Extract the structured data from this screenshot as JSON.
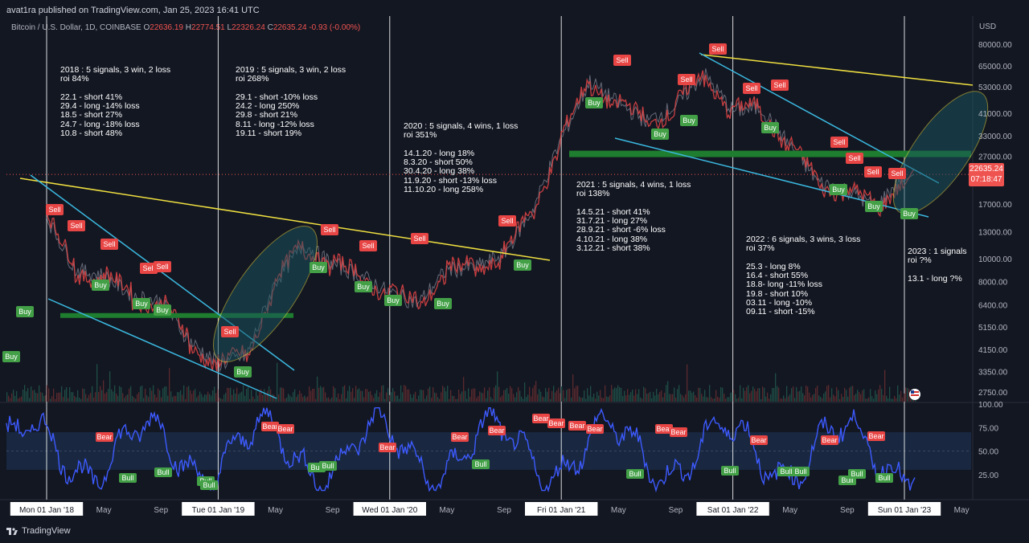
{
  "header": {
    "published": "avat1ra published on TradingView.com, Jan 25, 2023 16:41 UTC",
    "symbol": "Bitcoin / U.S. Dollar, 1D, COINBASE",
    "o_label": "O",
    "o": "22636.19",
    "h_label": "H",
    "h": "22774.51",
    "l_label": "L",
    "l": "22326.24",
    "c_label": "C",
    "c": "22635.24",
    "change": "-0.93 (-0.00%)"
  },
  "price_axis": {
    "currency": "USD",
    "ticks": [
      "80000.00",
      "65000.00",
      "53000.00",
      "41000.00",
      "33000.00",
      "27000.00",
      "17000.00",
      "13000.00",
      "10000.00",
      "8000.00",
      "6400.00",
      "5150.00",
      "4150.00",
      "3350.00",
      "2750.00"
    ],
    "current_price": "22635.24",
    "countdown": "07:18:47"
  },
  "osc_axis": {
    "ticks": [
      "100.00",
      "75.00",
      "50.00",
      "25.00"
    ]
  },
  "time_axis": [
    {
      "label": "Mon 01 Jan '18",
      "boxed": true
    },
    {
      "label": "May",
      "boxed": false
    },
    {
      "label": "Sep",
      "boxed": false
    },
    {
      "label": "Tue 01 Jan '19",
      "boxed": true
    },
    {
      "label": "May",
      "boxed": false
    },
    {
      "label": "Sep",
      "boxed": false
    },
    {
      "label": "Wed 01 Jan '20",
      "boxed": true
    },
    {
      "label": "May",
      "boxed": false
    },
    {
      "label": "Sep",
      "boxed": false
    },
    {
      "label": "Fri 01 Jan '21",
      "boxed": true
    },
    {
      "label": "May",
      "boxed": false
    },
    {
      "label": "Sep",
      "boxed": false
    },
    {
      "label": "Sat 01 Jan '22",
      "boxed": true
    },
    {
      "label": "May",
      "boxed": false
    },
    {
      "label": "Sep",
      "boxed": false
    },
    {
      "label": "Sun 01 Jan '23",
      "boxed": true
    },
    {
      "label": "May",
      "boxed": false
    }
  ],
  "annotations": {
    "y2018": "2018 : 5 signals, 3 win, 2 loss\nroi 84%\n\n22.1 - short 41%\n29.4 - long -14% loss\n18.5 - short 27%\n24.7 - long -18% loss\n10.8 - short 48%",
    "y2019": "2019 : 5 signals, 3 win, 2 loss\nroi 268%\n\n29.1 - short -10% loss\n24.2 - long 250%\n29.8 - short 21%\n8.11 - long -12% loss\n19.11 - short 19%",
    "y2020": "2020 : 5 signals, 4 wins, 1 loss\nroi 351%\n\n14.1.20 - long 18%\n8.3.20 - short 50%\n30.4.20 - long 38%\n11.9.20 - short -13% loss\n11.10.20 - long 258%",
    "y2021": "2021 : 5 signals, 4 wins, 1 loss\nroi 138%\n\n14.5.21 - short 41%\n31.7.21 - long 27%\n28.9.21 - short -6% loss\n4.10.21 - long 38%\n3.12.21 - short 38%",
    "y2022": "2022 : 6 signals, 3 wins, 3 loss\nroi 37%\n\n25.3 - long 8%\n16.4 - short 55%\n18.8- long -11% loss\n19.8 - short 10%\n03.11 - long -10%\n09.11 - short -15%",
    "y2023": "2023 : 1 signals\nroi ?%\n\n13.1 - long ?%"
  },
  "signal_labels": {
    "buy": "Buy",
    "sell": "Sell",
    "bull": "Bull",
    "bear": "Bear"
  },
  "chart_data": {
    "type": "line",
    "title": "Bitcoin / U.S. Dollar, 1D, COINBASE",
    "ylabel": "USD",
    "yscale": "log",
    "ylim": [
      2500,
      90000
    ],
    "x": [
      "2018-01",
      "2018-03",
      "2018-05",
      "2018-07",
      "2018-09",
      "2018-11",
      "2019-01",
      "2019-03",
      "2019-05",
      "2019-07",
      "2019-09",
      "2019-11",
      "2020-01",
      "2020-03",
      "2020-05",
      "2020-07",
      "2020-09",
      "2020-11",
      "2021-01",
      "2021-03",
      "2021-05",
      "2021-07",
      "2021-09",
      "2021-11",
      "2022-01",
      "2022-03",
      "2022-05",
      "2022-07",
      "2022-09",
      "2022-11",
      "2023-01"
    ],
    "series": [
      {
        "name": "BTCUSD",
        "values": [
          15000,
          9000,
          8500,
          7000,
          6600,
          4500,
          3600,
          3900,
          8000,
          11500,
          9500,
          8500,
          7200,
          6500,
          9000,
          9200,
          10500,
          16000,
          32000,
          56000,
          45000,
          38000,
          44000,
          60000,
          42000,
          43000,
          30000,
          21000,
          19500,
          16500,
          22635
        ]
      }
    ],
    "signals": [
      {
        "type": "Sell",
        "date": "2018-01-22"
      },
      {
        "type": "Buy",
        "date": "2018-04-29"
      },
      {
        "type": "Sell",
        "date": "2018-05-18"
      },
      {
        "type": "Buy",
        "date": "2018-07-24"
      },
      {
        "type": "Sell",
        "date": "2018-08-10"
      },
      {
        "type": "Sell",
        "date": "2019-01-29"
      },
      {
        "type": "Buy",
        "date": "2019-02-24"
      },
      {
        "type": "Sell",
        "date": "2019-08-29"
      },
      {
        "type": "Buy",
        "date": "2019-11-08"
      },
      {
        "type": "Sell",
        "date": "2019-11-19"
      },
      {
        "type": "Buy",
        "date": "2020-01-14"
      },
      {
        "type": "Sell",
        "date": "2020-03-08"
      },
      {
        "type": "Buy",
        "date": "2020-04-30"
      },
      {
        "type": "Sell",
        "date": "2020-09-11"
      },
      {
        "type": "Buy",
        "date": "2020-10-11"
      },
      {
        "type": "Sell",
        "date": "2021-05-14"
      },
      {
        "type": "Buy",
        "date": "2021-07-31"
      },
      {
        "type": "Sell",
        "date": "2021-09-28"
      },
      {
        "type": "Buy",
        "date": "2021-10-04"
      },
      {
        "type": "Sell",
        "date": "2021-12-03"
      },
      {
        "type": "Buy",
        "date": "2022-03-25"
      },
      {
        "type": "Sell",
        "date": "2022-04-16"
      },
      {
        "type": "Buy",
        "date": "2022-08-18"
      },
      {
        "type": "Sell",
        "date": "2022-08-19"
      },
      {
        "type": "Buy",
        "date": "2022-11-03"
      },
      {
        "type": "Sell",
        "date": "2022-11-09"
      },
      {
        "type": "Buy",
        "date": "2023-01-13"
      }
    ],
    "oscillator": {
      "ylim": [
        0,
        100
      ],
      "ticks": [
        25,
        50,
        75,
        100
      ]
    }
  },
  "colors": {
    "background": "#131722",
    "price_up": "#26a69a",
    "price_down": "#ef5350",
    "trendline": "#f0e040",
    "channel": "#3bb9e0",
    "support_band": "#1e7d2f",
    "buy": "#43a047",
    "sell": "#e84545",
    "oscillator": "#3d5afe"
  },
  "footer": {
    "brand": "TradingView"
  }
}
